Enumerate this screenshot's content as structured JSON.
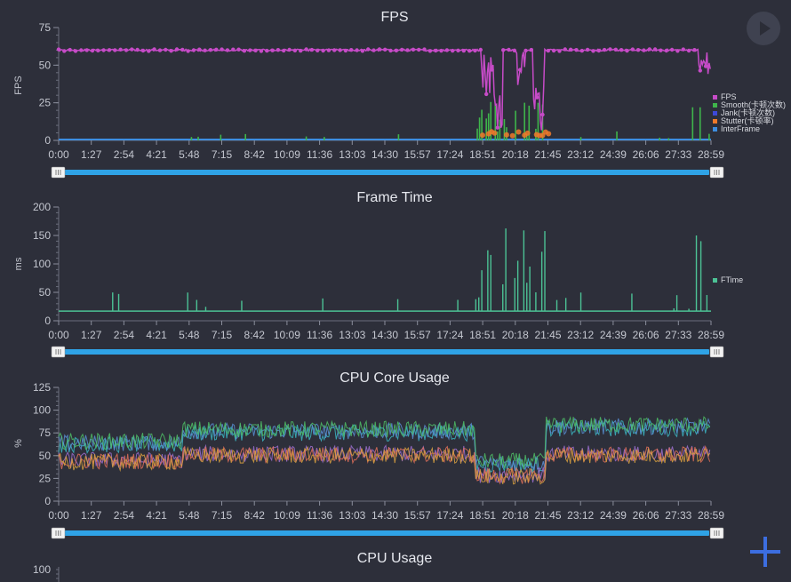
{
  "x_ticks": [
    "0:00",
    "1:27",
    "2:54",
    "4:21",
    "5:48",
    "7:15",
    "8:42",
    "10:09",
    "11:36",
    "13:03",
    "14:30",
    "15:57",
    "17:24",
    "18:51",
    "20:18",
    "21:45",
    "23:12",
    "24:39",
    "26:06",
    "27:33",
    "28:59"
  ],
  "colors": {
    "fps": "#c64bc7",
    "smooth": "#3fb54b",
    "jank": "#3d49d8",
    "stutter": "#f07a2a",
    "interframe": "#3d8ee0",
    "ftime": "#4cc295",
    "slider": "#2fa3e6",
    "cpu_core_colors": [
      "#3cb7c4",
      "#5a8fd6",
      "#4fbf66",
      "#9c6fd0",
      "#e3705a",
      "#d9a040"
    ]
  },
  "chart_data": [
    {
      "type": "line",
      "title": "FPS",
      "ylabel": "FPS",
      "ylim": [
        0,
        75
      ],
      "yticks": [
        0,
        25,
        50,
        75
      ],
      "series": [
        {
          "name": "FPS"
        },
        {
          "name": "Smooth(卡顿次数)"
        },
        {
          "name": "Jank(卡顿次数)"
        },
        {
          "name": "Stutter(卡顿率)"
        },
        {
          "name": "InterFrame"
        }
      ],
      "fps_baseline": 60,
      "legend": "right"
    },
    {
      "type": "bar",
      "title": "Frame Time",
      "ylabel": "ms",
      "ylim": [
        0,
        200
      ],
      "yticks": [
        0,
        50,
        100,
        150,
        200
      ],
      "series": [
        {
          "name": "FTime"
        }
      ],
      "baseline": 17,
      "legend": "right"
    },
    {
      "type": "line",
      "title": "CPU Core Usage",
      "ylabel": "%",
      "ylim": [
        0,
        125
      ],
      "yticks": [
        0,
        25,
        50,
        75,
        100,
        125
      ],
      "series_count": 6
    },
    {
      "type": "line",
      "title": "CPU Usage",
      "ylabel": "",
      "yticks": [
        100
      ]
    }
  ]
}
